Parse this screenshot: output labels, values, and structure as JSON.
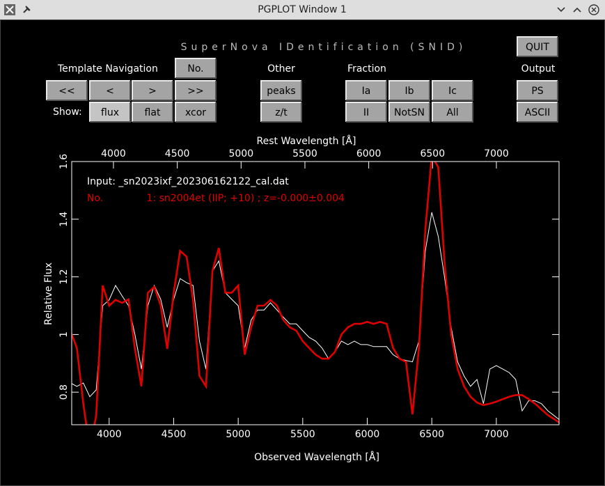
{
  "window": {
    "title": "PGPLOT Window 1"
  },
  "panel": {
    "title": "SuperNova IDentification (SNID)",
    "labels": {
      "navigation": "Template Navigation",
      "other": "Other",
      "fraction": "Fraction",
      "output": "Output",
      "show": "Show:"
    },
    "buttons": [
      "QUIT",
      "No.",
      "<<",
      "<",
      ">",
      ">>",
      "peaks",
      "Ia",
      "Ib",
      "Ic",
      "PS",
      "flux",
      "flat",
      "xcor",
      "z/t",
      "II",
      "NotSN",
      "All",
      "ASCII"
    ]
  },
  "chart_data": {
    "type": "line",
    "xlabel": "Observed Wavelength [Å]",
    "x2label": "Rest Wavelength [Å]",
    "ylabel": "Relative Flux",
    "xlim": [
      3710,
      7486
    ],
    "x2lim": [
      3673,
      7491
    ],
    "ylim": [
      0.687,
      1.6
    ],
    "xticks": [
      4000,
      4500,
      5000,
      5500,
      6000,
      6500,
      7000
    ],
    "x2ticks": [
      4000,
      4500,
      5000,
      5500,
      6000,
      6500,
      7000
    ],
    "yticks": [
      0.8,
      1,
      1.2,
      1.4,
      1.6
    ],
    "x": [
      3700,
      3750,
      3800,
      3850,
      3900,
      3950,
      4000,
      4050,
      4100,
      4150,
      4200,
      4250,
      4300,
      4350,
      4400,
      4450,
      4500,
      4550,
      4600,
      4650,
      4700,
      4750,
      4800,
      4850,
      4900,
      4950,
      5000,
      5050,
      5100,
      5150,
      5200,
      5250,
      5300,
      5350,
      5400,
      5450,
      5500,
      5550,
      5600,
      5650,
      5700,
      5750,
      5800,
      5850,
      5900,
      5950,
      6000,
      6050,
      6100,
      6150,
      6200,
      6250,
      6300,
      6350,
      6400,
      6450,
      6500,
      6550,
      6600,
      6650,
      6700,
      6750,
      6800,
      6850,
      6900,
      6950,
      7000,
      7050,
      7100,
      7150,
      7200,
      7250,
      7300,
      7350,
      7400,
      7450,
      7500
    ],
    "series": [
      {
        "name": "Input: _sn2023ixf_202306162122_cal.dat",
        "color": "#ffffff",
        "values": [
          0.832,
          0.82,
          0.832,
          0.784,
          0.808,
          1.1,
          1.12,
          1.17,
          1.134,
          1.1,
          1.0,
          0.88,
          1.1,
          1.17,
          1.122,
          1.025,
          1.122,
          1.194,
          1.18,
          1.17,
          0.977,
          0.88,
          1.22,
          1.255,
          1.145,
          1.122,
          1.1,
          0.953,
          1.05,
          1.085,
          1.085,
          1.11,
          1.085,
          1.06,
          1.037,
          1.037,
          1.013,
          0.99,
          0.977,
          0.953,
          0.916,
          0.94,
          0.977,
          0.965,
          0.977,
          0.965,
          0.965,
          0.958,
          0.958,
          0.958,
          0.93,
          0.916,
          0.91,
          0.905,
          0.977,
          1.29,
          1.424,
          1.34,
          1.194,
          1.025,
          0.905,
          0.856,
          0.82,
          0.844,
          0.76,
          0.88,
          0.892,
          0.88,
          0.868,
          0.844,
          0.735,
          0.77,
          0.77,
          0.76,
          0.735,
          0.718,
          0.7
        ]
      },
      {
        "name": "No.              1: sn2004et (IIP; +10) ; z=-0.000±0.004",
        "color": "#e00000",
        "values": [
          1.013,
          0.953,
          0.76,
          0.6,
          0.72,
          1.17,
          1.1,
          1.12,
          1.11,
          1.122,
          0.95,
          0.82,
          1.145,
          1.165,
          1.1,
          0.95,
          1.145,
          1.29,
          1.27,
          1.12,
          0.856,
          0.82,
          1.22,
          1.3,
          1.145,
          1.145,
          1.17,
          0.93,
          1.025,
          1.1,
          1.1,
          1.12,
          1.1,
          1.05,
          1.025,
          1.013,
          0.977,
          0.953,
          0.93,
          0.916,
          0.916,
          0.94,
          1.0,
          1.025,
          1.037,
          1.037,
          1.044,
          1.037,
          1.044,
          1.037,
          0.953,
          0.916,
          0.905,
          0.723,
          0.953,
          1.363,
          1.62,
          1.58,
          1.24,
          1.0,
          0.88,
          0.82,
          0.784,
          0.764,
          0.755,
          0.76,
          0.767,
          0.776,
          0.784,
          0.79,
          0.79,
          0.776,
          0.76,
          0.74,
          0.72,
          0.706,
          0.69
        ]
      }
    ]
  }
}
